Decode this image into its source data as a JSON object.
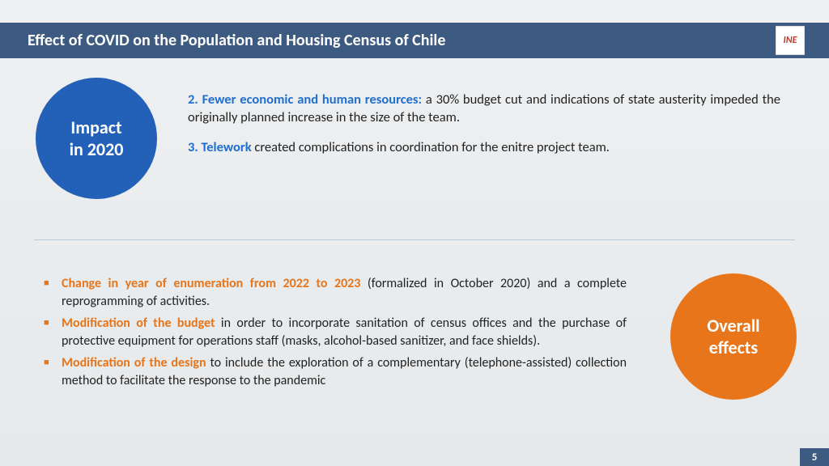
{
  "header": {
    "title": "Effect of COVID on the Population and Housing Census of Chile"
  },
  "logo": {
    "text": "INE"
  },
  "impact_circle": {
    "line1": "Impact",
    "line2": "in 2020"
  },
  "impact": {
    "p2_lead": "2. Fewer economic and human resources:",
    "p2_rest": " a 30% budget cut and indications of state austerity impeded the originally planned increase in the size of the team.",
    "p3_lead": "3. Telework",
    "p3_rest": " created complications in coordination for the enitre project team."
  },
  "effects_circle": {
    "line1": "Overall",
    "line2": "effects"
  },
  "bullets": {
    "b1_lead": "Change in year of enumeration from 2022 to 2023",
    "b1_rest": " (formalized in October 2020) and a complete reprogramming of activities.",
    "b2_lead": "Modification of the budget",
    "b2_rest": " in order to incorporate sanitation of census offices and the purchase of protective equipment for operations staff (masks, alcohol-based sanitizer, and face shields).",
    "b3_lead": "Modification of the design",
    "b3_rest": " to include the exploration of a complementary (telephone-assisted) collection method to facilitate the response to the pandemic"
  },
  "page_number": "5",
  "colors": {
    "header_bg": "#3d5a80",
    "blue_circle": "#2360b8",
    "orange": "#e8751a",
    "lead_blue": "#1f6fd0",
    "bg_top": "#eef0f2"
  }
}
